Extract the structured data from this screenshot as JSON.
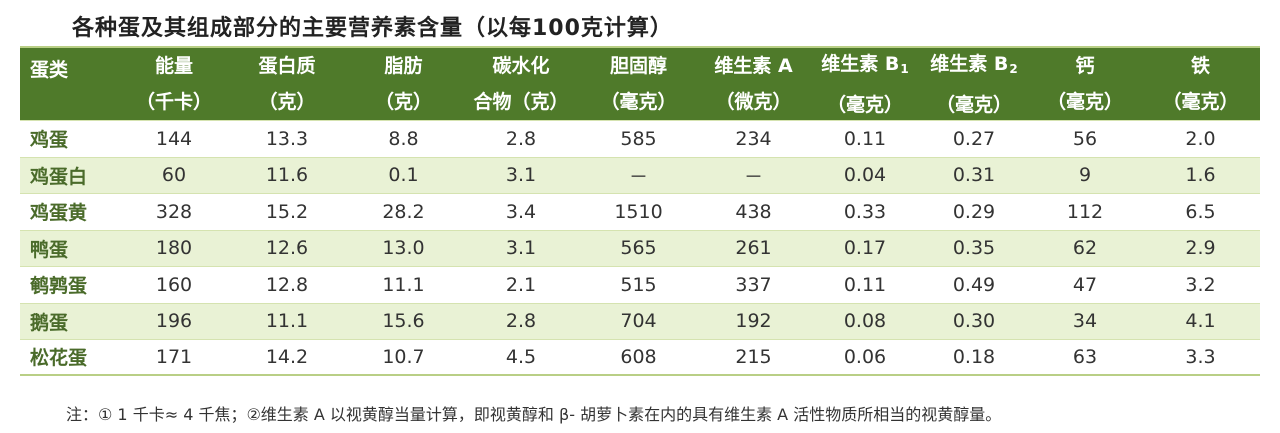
{
  "title": "各种蛋及其组成部分的主要营养素含量（以每100克计算）",
  "headers": [
    {
      "l1": "蛋类",
      "l2": "",
      "sub": ""
    },
    {
      "l1": "能量",
      "l2": "（千卡）",
      "sub": ""
    },
    {
      "l1": "蛋白质",
      "l2": "（克）",
      "sub": ""
    },
    {
      "l1": "脂肪",
      "l2": "（克）",
      "sub": ""
    },
    {
      "l1": "碳水化",
      "l2": "合物（克）",
      "sub": ""
    },
    {
      "l1": "胆固醇",
      "l2": "（毫克）",
      "sub": ""
    },
    {
      "l1": "维生素 A",
      "l2": "（微克）",
      "sub": ""
    },
    {
      "l1": "维生素 B",
      "l2": "（毫克）",
      "sub": "1"
    },
    {
      "l1": "维生素 B",
      "l2": "（毫克）",
      "sub": "2"
    },
    {
      "l1": "钙",
      "l2": "（毫克）",
      "sub": ""
    },
    {
      "l1": "铁",
      "l2": "（毫克）",
      "sub": ""
    }
  ],
  "rows": [
    [
      "鸡蛋",
      "144",
      "13.3",
      "8.8",
      "2.8",
      "585",
      "234",
      "0.11",
      "0.27",
      "56",
      "2.0"
    ],
    [
      "鸡蛋白",
      "60",
      "11.6",
      "0.1",
      "3.1",
      "－",
      "－",
      "0.04",
      "0.31",
      "9",
      "1.6"
    ],
    [
      "鸡蛋黄",
      "328",
      "15.2",
      "28.2",
      "3.4",
      "1510",
      "438",
      "0.33",
      "0.29",
      "112",
      "6.5"
    ],
    [
      "鸭蛋",
      "180",
      "12.6",
      "13.0",
      "3.1",
      "565",
      "261",
      "0.17",
      "0.35",
      "62",
      "2.9"
    ],
    [
      "鹌鹑蛋",
      "160",
      "12.8",
      "11.1",
      "2.1",
      "515",
      "337",
      "0.11",
      "0.49",
      "47",
      "3.2"
    ],
    [
      "鹅蛋",
      "196",
      "11.1",
      "15.6",
      "2.8",
      "704",
      "192",
      "0.08",
      "0.30",
      "34",
      "4.1"
    ],
    [
      "松花蛋",
      "171",
      "14.2",
      "10.7",
      "4.5",
      "608",
      "215",
      "0.06",
      "0.18",
      "63",
      "3.3"
    ]
  ],
  "note": "注：① 1 千卡≈ 4 千焦；②维生素 A 以视黄醇当量计算，即视黄醇和 β- 胡萝卜素在内的具有维生素 A 活性物质所相当的视黄醇量。",
  "colors": {
    "header_bg": "#4f7a2a",
    "stripe": "#e9f2d5",
    "name_text": "#4a6b2a"
  }
}
